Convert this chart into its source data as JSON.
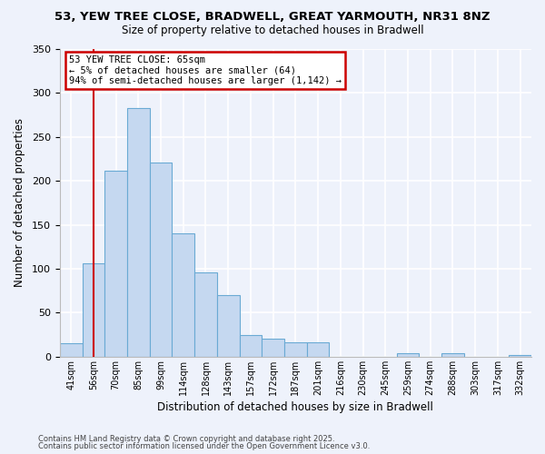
{
  "title": "53, YEW TREE CLOSE, BRADWELL, GREAT YARMOUTH, NR31 8NZ",
  "subtitle": "Size of property relative to detached houses in Bradwell",
  "xlabel": "Distribution of detached houses by size in Bradwell",
  "ylabel": "Number of detached properties",
  "footnote1": "Contains HM Land Registry data © Crown copyright and database right 2025.",
  "footnote2": "Contains public sector information licensed under the Open Government Licence v3.0.",
  "bar_labels": [
    "41sqm",
    "56sqm",
    "70sqm",
    "85sqm",
    "99sqm",
    "114sqm",
    "128sqm",
    "143sqm",
    "157sqm",
    "172sqm",
    "187sqm",
    "201sqm",
    "216sqm",
    "230sqm",
    "245sqm",
    "259sqm",
    "274sqm",
    "288sqm",
    "303sqm",
    "317sqm",
    "332sqm"
  ],
  "bar_values": [
    15,
    106,
    212,
    283,
    221,
    140,
    96,
    70,
    25,
    21,
    16,
    16,
    0,
    0,
    0,
    4,
    0,
    4,
    0,
    0,
    2
  ],
  "bar_color": "#c5d8f0",
  "bar_edge_color": "#6aaad4",
  "ylim": [
    0,
    350
  ],
  "yticks": [
    0,
    50,
    100,
    150,
    200,
    250,
    300,
    350
  ],
  "property_line_x": 1,
  "annotation_title": "53 YEW TREE CLOSE: 65sqm",
  "annotation_line1": "← 5% of detached houses are smaller (64)",
  "annotation_line2": "94% of semi-detached houses are larger (1,142) →",
  "annotation_box_color": "#ffffff",
  "annotation_box_edge": "#cc0000",
  "vline_color": "#cc0000",
  "bin_centers": [
    0,
    1,
    2,
    3,
    4,
    5,
    6,
    7,
    8,
    9,
    10,
    11,
    12,
    13,
    14,
    15,
    16,
    17,
    18,
    19,
    20
  ],
  "bg_color": "#eef2fb"
}
